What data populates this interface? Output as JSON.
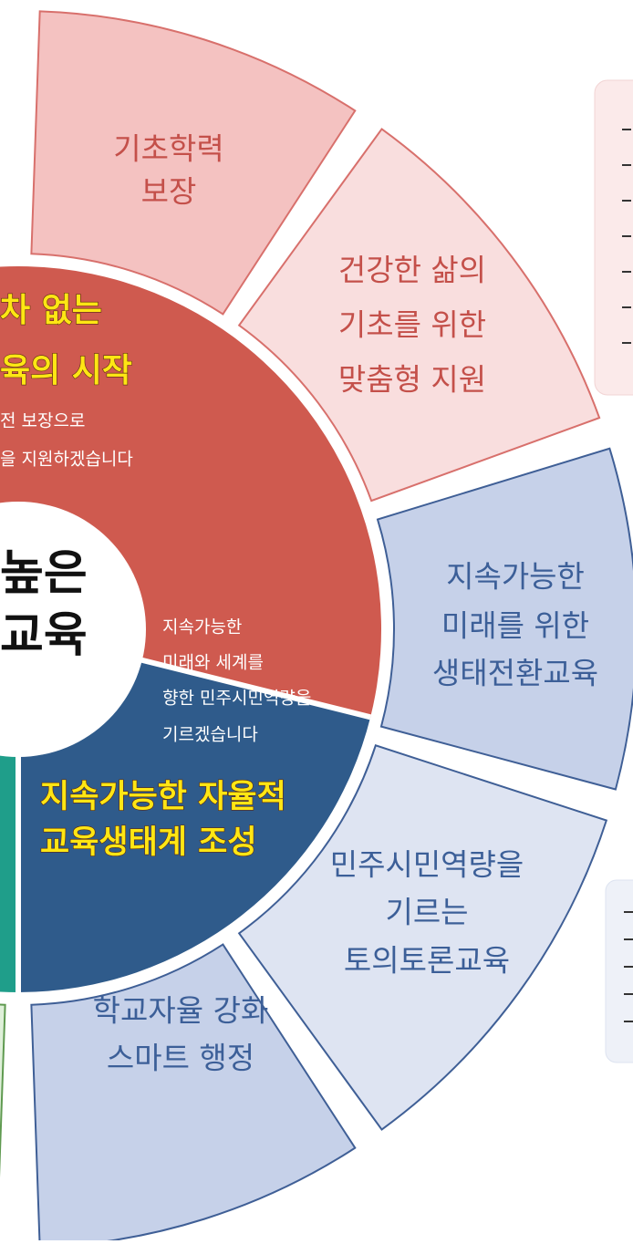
{
  "outer_segments": [
    {
      "lines": [
        "기초학력",
        "보장"
      ]
    },
    {
      "lines": [
        "건강한 삶의",
        "기초를 위한",
        "맞춤형 지원"
      ]
    },
    {
      "lines": [
        "지속가능한",
        "미래를 위한",
        "생태전환교육"
      ]
    },
    {
      "lines": [
        "민주시민역량을",
        "기르는",
        "토의토론교육"
      ]
    },
    {
      "lines": [
        "학교자율 강화",
        "스마트 행정"
      ]
    }
  ],
  "red_sector": {
    "title_lines": [
      "차 없는",
      "육의 시작"
    ],
    "body_lines": [
      "전 보장으로",
      "을 지원하겠습니다"
    ]
  },
  "blue_sector": {
    "body_lines": [
      "지속가능한",
      "미래와 세계를",
      "향한 민주시민역량을",
      "기르겠습니다"
    ],
    "title_lines": [
      "지속가능한 자율적",
      "교육생태계 조성"
    ]
  },
  "center": {
    "lines": [
      "높은",
      "교육"
    ]
  }
}
